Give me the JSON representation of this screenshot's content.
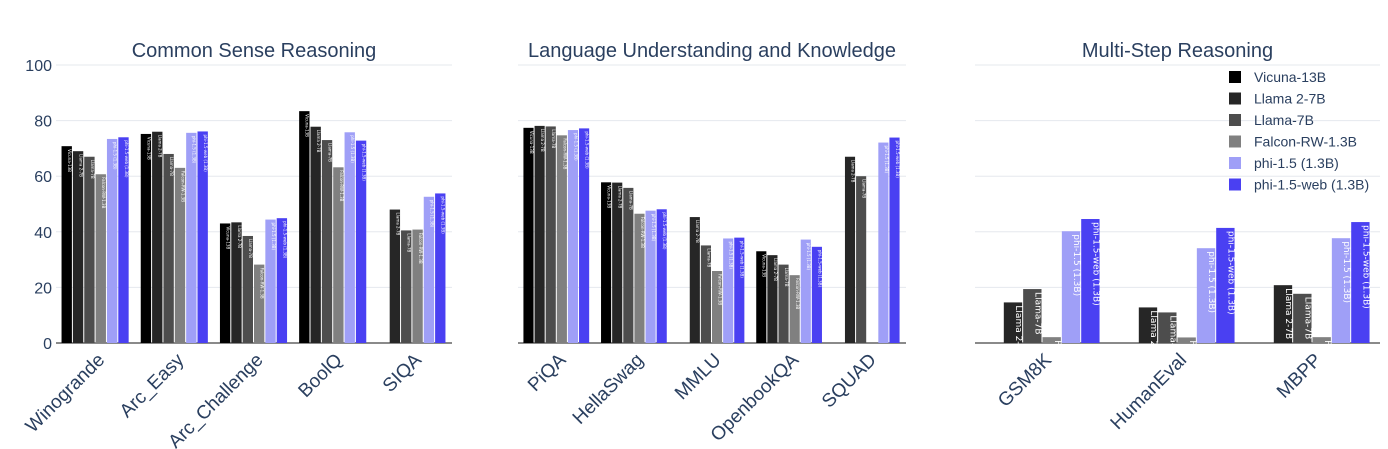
{
  "colors": [
    "#000000",
    "#262626",
    "#4d4d4d",
    "#808080",
    "#9f9ff7",
    "#4a40f2"
  ],
  "series_names": [
    "Vicuna-13B",
    "Llama 2-7B",
    "Llama-7B",
    "Falcon-RW-1.3B",
    "phi-1.5 (1.3B)",
    "phi-1.5-web (1.3B)"
  ],
  "bar_labels": [
    "Vicuna-13B",
    "Llama 2-7B",
    "Llama-7B",
    "Falcon-RW-1.3B",
    "phi-1.5 (1.3B)",
    "phi-1.5-web (1.3B)"
  ],
  "chart_data": [
    {
      "type": "bar",
      "title": "Common Sense Reasoning",
      "categories": [
        "Winogrande",
        "Arc_Easy",
        "Arc_Challenge",
        "BoolQ",
        "SIQA"
      ],
      "ylim": [
        0,
        100
      ],
      "yticks": [
        0,
        20,
        40,
        60,
        80,
        100
      ],
      "grid": true,
      "series": [
        {
          "name": "Vicuna-13B",
          "values": [
            70.8,
            75.2,
            43.0,
            83.4,
            null
          ]
        },
        {
          "name": "Llama 2-7B",
          "values": [
            69.0,
            76.0,
            43.4,
            77.8,
            48.0
          ]
        },
        {
          "name": "Llama-7B",
          "values": [
            67.0,
            68.0,
            38.5,
            73.0,
            40.5
          ]
        },
        {
          "name": "Falcon-RW-1.3B",
          "values": [
            60.7,
            63.0,
            28.2,
            63.2,
            40.8
          ]
        },
        {
          "name": "phi-1.5 (1.3B)",
          "values": [
            73.4,
            75.6,
            44.4,
            75.8,
            52.6
          ]
        },
        {
          "name": "phi-1.5-web (1.3B)",
          "values": [
            74.0,
            76.1,
            44.9,
            72.8,
            53.8
          ]
        }
      ]
    },
    {
      "type": "bar",
      "title": "Language Understanding and Knowledge",
      "categories": [
        "PiQA",
        "HellaSwag",
        "MMLU",
        "OpenbookQA",
        "SQUAD"
      ],
      "ylim": [
        0,
        100
      ],
      "yticks": [
        0,
        20,
        40,
        60,
        80,
        100
      ],
      "grid": true,
      "series": [
        {
          "name": "Vicuna-13B",
          "values": [
            77.4,
            57.8,
            null,
            33.0,
            null
          ]
        },
        {
          "name": "Llama 2-7B",
          "values": [
            78.1,
            57.7,
            45.3,
            31.6,
            67.0
          ]
        },
        {
          "name": "Llama-7B",
          "values": [
            77.9,
            55.8,
            35.1,
            28.2,
            60.0
          ]
        },
        {
          "name": "Falcon-RW-1.3B",
          "values": [
            74.7,
            46.5,
            25.9,
            24.4,
            null
          ]
        },
        {
          "name": "phi-1.5 (1.3B)",
          "values": [
            76.6,
            47.6,
            37.6,
            37.2,
            72.1
          ]
        },
        {
          "name": "phi-1.5-web (1.3B)",
          "values": [
            77.2,
            48.1,
            37.9,
            34.6,
            73.9
          ]
        }
      ]
    },
    {
      "type": "bar",
      "title": "Multi-Step Reasoning",
      "categories": [
        "GSM8K",
        "HumanEval",
        "MBPP"
      ],
      "ylim": [
        0,
        100
      ],
      "yticks": [
        0,
        20,
        40,
        60,
        80,
        100
      ],
      "grid": true,
      "legend": "top-right",
      "series": [
        {
          "name": "Vicuna-13B",
          "values": [
            null,
            null,
            null
          ]
        },
        {
          "name": "Llama 2-7B",
          "values": [
            14.6,
            12.8,
            20.8
          ]
        },
        {
          "name": "Llama-7B",
          "values": [
            19.4,
            11.0,
            17.7
          ]
        },
        {
          "name": "Falcon-RW-1.3B",
          "values": [
            2.1,
            2.0,
            2.1
          ]
        },
        {
          "name": "phi-1.5 (1.3B)",
          "values": [
            40.2,
            34.1,
            37.7
          ]
        },
        {
          "name": "phi-1.5-web (1.3B)",
          "values": [
            44.6,
            41.4,
            43.5
          ]
        }
      ]
    }
  ]
}
